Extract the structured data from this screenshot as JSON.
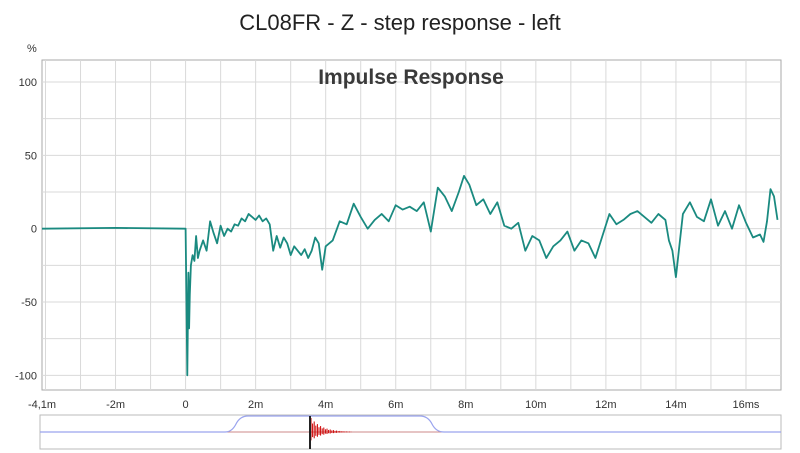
{
  "chart_data": {
    "type": "line",
    "title": "CL08FR - Z - step response - left",
    "subtitle": "Impulse Response",
    "ylabel": "%",
    "xlabel": "",
    "xlim": [
      -4.1,
      17.0
    ],
    "ylim": [
      -110,
      115
    ],
    "x_ticks": [
      -4.1,
      -2,
      0,
      2,
      4,
      6,
      8,
      10,
      12,
      14,
      16
    ],
    "x_tick_labels": [
      "-4,1m",
      "-2m",
      "0",
      "2m",
      "4m",
      "6m",
      "8m",
      "10m",
      "12m",
      "14m",
      "16ms"
    ],
    "y_ticks": [
      100,
      50,
      0,
      -50,
      -100
    ],
    "y_tick_labels": [
      "100",
      "50",
      "0",
      "-50",
      "-100"
    ],
    "grid": true,
    "colors": {
      "series": "#1a8a80",
      "grid": "#d9d9d9",
      "overview_envelope": "#9aa4ee",
      "overview_impulse": "#cc0000",
      "overview_marker": "#222222"
    },
    "series": [
      {
        "x": [
          -4.1,
          -2.0,
          0.0,
          0.02,
          0.05,
          0.08,
          0.1,
          0.12,
          0.15,
          0.2,
          0.25,
          0.3,
          0.35,
          0.4,
          0.5,
          0.6,
          0.7,
          0.8,
          0.9,
          1.0,
          1.1,
          1.2,
          1.3,
          1.4,
          1.5,
          1.6,
          1.7,
          1.8,
          1.9,
          2.0,
          2.1,
          2.2,
          2.3,
          2.4,
          2.5,
          2.6,
          2.7,
          2.8,
          2.9,
          3.0,
          3.1,
          3.2,
          3.3,
          3.4,
          3.5,
          3.6,
          3.7,
          3.8,
          3.9,
          4.0,
          4.2,
          4.4,
          4.6,
          4.8,
          5.0,
          5.2,
          5.4,
          5.6,
          5.8,
          6.0,
          6.2,
          6.4,
          6.6,
          6.8,
          7.0,
          7.2,
          7.4,
          7.6,
          7.8,
          7.95,
          8.1,
          8.3,
          8.5,
          8.7,
          8.9,
          9.1,
          9.3,
          9.5,
          9.7,
          9.9,
          10.1,
          10.3,
          10.5,
          10.7,
          10.9,
          11.1,
          11.3,
          11.5,
          11.7,
          11.9,
          12.1,
          12.3,
          12.5,
          12.7,
          12.9,
          13.1,
          13.3,
          13.5,
          13.7,
          13.8,
          13.9,
          14.0,
          14.2,
          14.4,
          14.6,
          14.8,
          15.0,
          15.2,
          15.4,
          15.6,
          15.8,
          16.0,
          16.2,
          16.4,
          16.5,
          16.6,
          16.7,
          16.8,
          16.9
        ],
        "values": [
          0,
          0.5,
          0,
          -40,
          -100,
          -30,
          -68,
          -45,
          -25,
          -18,
          -22,
          -5,
          -20,
          -15,
          -8,
          -15,
          5,
          -3,
          -10,
          2,
          -5,
          0,
          -2,
          3,
          2,
          7,
          5,
          10,
          8,
          6,
          9,
          5,
          7,
          3,
          -15,
          -5,
          -13,
          -6,
          -10,
          -18,
          -12,
          -15,
          -18,
          -14,
          -20,
          -15,
          -6,
          -10,
          -28,
          -12,
          -8,
          5,
          3,
          17,
          8,
          0,
          6,
          10,
          5,
          16,
          13,
          15,
          12,
          18,
          -2,
          28,
          22,
          12,
          25,
          36,
          30,
          16,
          20,
          10,
          18,
          2,
          0,
          4,
          -15,
          -5,
          -8,
          -20,
          -12,
          -8,
          -2,
          -15,
          -8,
          -10,
          -20,
          -5,
          10,
          3,
          6,
          10,
          12,
          8,
          4,
          10,
          6,
          -8,
          -15,
          -33,
          10,
          18,
          8,
          5,
          20,
          2,
          12,
          0,
          16,
          4,
          -6,
          -4,
          -9,
          5,
          27,
          22,
          6
        ]
      }
    ]
  }
}
